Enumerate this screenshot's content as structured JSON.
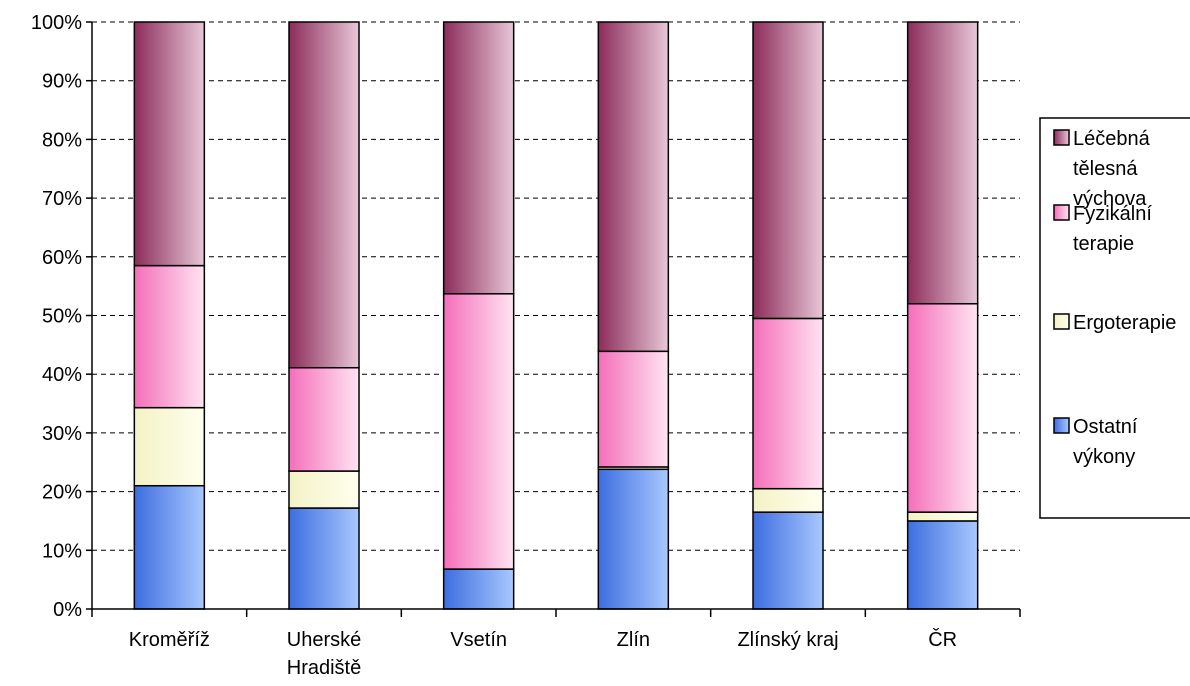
{
  "chart_data": {
    "type": "bar",
    "stacked": "percent",
    "categories": [
      "Kroměříž",
      "Uherské Hradiště",
      "Vsetín",
      "Zlín",
      "Zlínský kraj",
      "ČR"
    ],
    "category_lines": [
      [
        "Kroměříž"
      ],
      [
        "Uherské",
        "Hradiště"
      ],
      [
        "Vsetín"
      ],
      [
        "Zlín"
      ],
      [
        "Zlínský kraj"
      ],
      [
        "ČR"
      ]
    ],
    "series": [
      {
        "name": "Ostatní výkony",
        "legend_lines": [
          "Ostatní",
          "výkony"
        ],
        "values": [
          21.0,
          17.2,
          6.8,
          23.8,
          16.5,
          15.0
        ],
        "color_dark": "#3d6ee0",
        "color_light": "#a9c8ff"
      },
      {
        "name": "Ergoterapie",
        "legend_lines": [
          "Ergoterapie"
        ],
        "values": [
          13.3,
          6.3,
          0.0,
          0.4,
          4.0,
          1.5
        ],
        "color_dark": "#f3f2c6",
        "color_light": "#ffffee"
      },
      {
        "name": "Fyzikální terapie",
        "legend_lines": [
          "Fyzikální",
          "terapie"
        ],
        "values": [
          24.2,
          17.6,
          46.9,
          19.7,
          29.0,
          35.5
        ],
        "color_dark": "#f46fba",
        "color_light": "#ffe4f2"
      },
      {
        "name": "Léčebná tělesná výchova",
        "legend_lines": [
          "Léčebná",
          "tělesná",
          "výchova"
        ],
        "values": [
          41.5,
          58.9,
          46.3,
          56.1,
          50.5,
          48.0
        ],
        "color_dark": "#8c2c5a",
        "color_light": "#e8c7d8"
      }
    ],
    "y_ticks": [
      "0%",
      "10%",
      "20%",
      "30%",
      "40%",
      "50%",
      "60%",
      "70%",
      "80%",
      "90%",
      "100%"
    ],
    "ylim": [
      0,
      100
    ],
    "grid": "dashed horizontal",
    "legend_position": "right"
  }
}
